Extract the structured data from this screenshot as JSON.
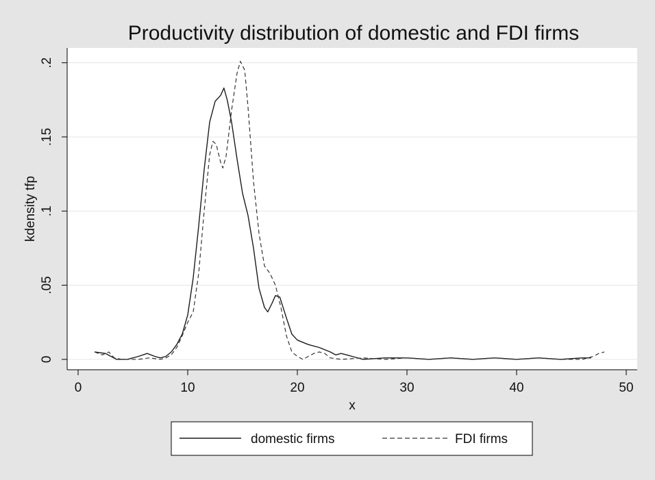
{
  "chart_data": {
    "type": "line",
    "title": "Productivity distribution of domestic and FDI firms",
    "xlabel": "x",
    "ylabel": "kdensity tfp",
    "xlim": [
      -1,
      51
    ],
    "ylim": [
      -0.007,
      0.21
    ],
    "xticks": [
      0,
      10,
      20,
      30,
      40,
      50
    ],
    "xtick_labels": [
      "0",
      "10",
      "20",
      "30",
      "40",
      "50"
    ],
    "yticks": [
      0,
      0.05,
      0.1,
      0.15,
      0.2
    ],
    "ytick_labels": [
      "0",
      ".05",
      ".1",
      ".15",
      ".2"
    ],
    "grid": "horizontal",
    "legend_position": "bottom",
    "series": [
      {
        "name": "domestic firms",
        "style": "solid",
        "color": "#1a1a1a",
        "points": [
          [
            1.5,
            0.005
          ],
          [
            2.5,
            0.004
          ],
          [
            3.0,
            0.002
          ],
          [
            3.5,
            0.0
          ],
          [
            4.5,
            0.0
          ],
          [
            5.5,
            0.002
          ],
          [
            6.3,
            0.004
          ],
          [
            7.0,
            0.002
          ],
          [
            7.5,
            0.001
          ],
          [
            8.0,
            0.002
          ],
          [
            8.5,
            0.005
          ],
          [
            9.0,
            0.01
          ],
          [
            9.5,
            0.017
          ],
          [
            10.0,
            0.03
          ],
          [
            10.5,
            0.055
          ],
          [
            11.0,
            0.09
          ],
          [
            11.5,
            0.128
          ],
          [
            12.0,
            0.16
          ],
          [
            12.5,
            0.174
          ],
          [
            13.0,
            0.178
          ],
          [
            13.3,
            0.183
          ],
          [
            13.6,
            0.175
          ],
          [
            14.0,
            0.16
          ],
          [
            14.5,
            0.135
          ],
          [
            15.0,
            0.112
          ],
          [
            15.5,
            0.097
          ],
          [
            16.0,
            0.075
          ],
          [
            16.5,
            0.048
          ],
          [
            17.0,
            0.035
          ],
          [
            17.3,
            0.032
          ],
          [
            17.7,
            0.038
          ],
          [
            18.0,
            0.043
          ],
          [
            18.4,
            0.042
          ],
          [
            19.0,
            0.028
          ],
          [
            19.5,
            0.017
          ],
          [
            20.0,
            0.013
          ],
          [
            21.0,
            0.01
          ],
          [
            22.0,
            0.008
          ],
          [
            23.0,
            0.005
          ],
          [
            23.5,
            0.003
          ],
          [
            24.0,
            0.004
          ],
          [
            25.0,
            0.002
          ],
          [
            26.0,
            0.0
          ],
          [
            28.0,
            0.001
          ],
          [
            30.0,
            0.001
          ],
          [
            32.0,
            0.0
          ],
          [
            34.0,
            0.001
          ],
          [
            36.0,
            0.0
          ],
          [
            38.0,
            0.001
          ],
          [
            40.0,
            0.0
          ],
          [
            42.0,
            0.001
          ],
          [
            44.0,
            0.0
          ],
          [
            46.0,
            0.001
          ],
          [
            46.8,
            0.001
          ]
        ]
      },
      {
        "name": "FDI firms",
        "style": "dashed",
        "color": "#333333",
        "points": [
          [
            1.5,
            0.005
          ],
          [
            2.2,
            0.003
          ],
          [
            2.8,
            0.005
          ],
          [
            3.3,
            0.001
          ],
          [
            4.0,
            0.0
          ],
          [
            5.5,
            0.0
          ],
          [
            6.5,
            0.001
          ],
          [
            7.5,
            0.0
          ],
          [
            8.0,
            0.001
          ],
          [
            8.5,
            0.003
          ],
          [
            9.0,
            0.008
          ],
          [
            9.5,
            0.016
          ],
          [
            10.0,
            0.025
          ],
          [
            10.5,
            0.032
          ],
          [
            11.0,
            0.058
          ],
          [
            11.5,
            0.1
          ],
          [
            12.0,
            0.138
          ],
          [
            12.3,
            0.147
          ],
          [
            12.6,
            0.145
          ],
          [
            13.0,
            0.133
          ],
          [
            13.2,
            0.129
          ],
          [
            13.5,
            0.137
          ],
          [
            14.0,
            0.168
          ],
          [
            14.5,
            0.193
          ],
          [
            14.8,
            0.201
          ],
          [
            15.2,
            0.195
          ],
          [
            15.5,
            0.17
          ],
          [
            16.0,
            0.12
          ],
          [
            16.5,
            0.085
          ],
          [
            17.0,
            0.063
          ],
          [
            17.5,
            0.058
          ],
          [
            18.0,
            0.05
          ],
          [
            18.5,
            0.035
          ],
          [
            19.0,
            0.016
          ],
          [
            19.5,
            0.005
          ],
          [
            20.0,
            0.002
          ],
          [
            20.5,
            0.0
          ],
          [
            21.0,
            0.002
          ],
          [
            21.5,
            0.004
          ],
          [
            22.0,
            0.005
          ],
          [
            22.5,
            0.004
          ],
          [
            23.0,
            0.001
          ],
          [
            24.0,
            0.0
          ],
          [
            26.0,
            0.001
          ],
          [
            28.0,
            0.0
          ],
          [
            30.0,
            0.001
          ],
          [
            32.0,
            0.0
          ],
          [
            34.0,
            0.001
          ],
          [
            36.0,
            0.0
          ],
          [
            38.0,
            0.001
          ],
          [
            40.0,
            0.0
          ],
          [
            42.0,
            0.001
          ],
          [
            44.0,
            0.0
          ],
          [
            46.0,
            0.0
          ],
          [
            46.5,
            0.001
          ],
          [
            47.0,
            0.002
          ],
          [
            47.5,
            0.004
          ],
          [
            48.0,
            0.005
          ]
        ]
      }
    ]
  }
}
